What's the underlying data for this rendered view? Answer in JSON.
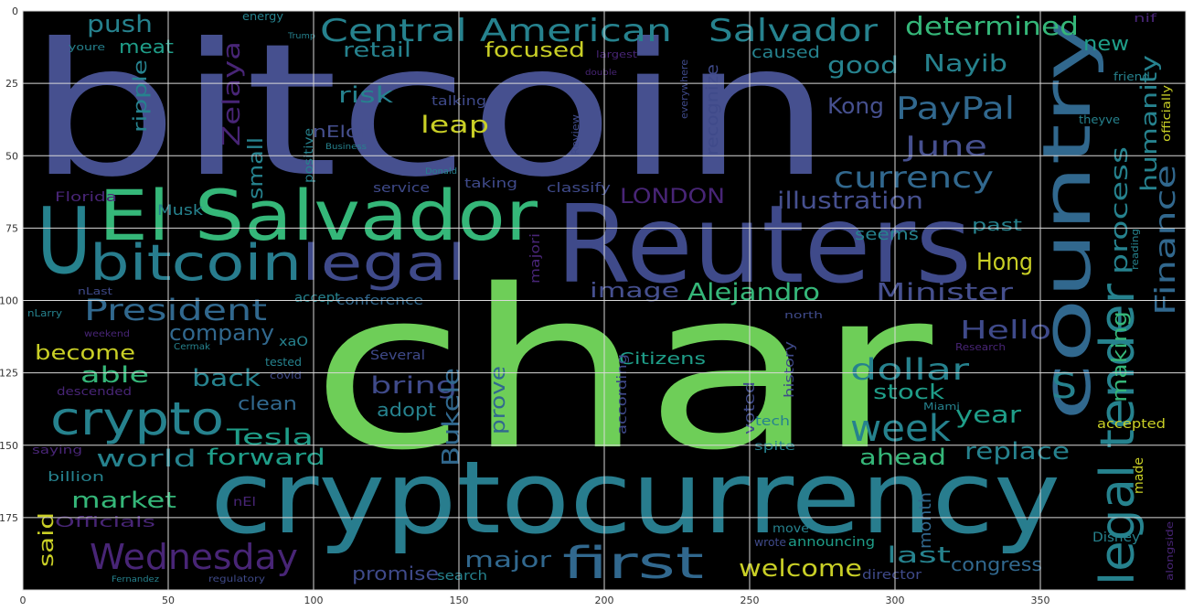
{
  "figure": {
    "background": "#000000",
    "grid_color": "#d9d9d9",
    "x_ticks": [
      "0",
      "50",
      "100",
      "150",
      "200",
      "250",
      "300",
      "350"
    ],
    "y_ticks": [
      "0",
      "25",
      "50",
      "75",
      "100",
      "125",
      "150",
      "175"
    ],
    "x_tick_values": [
      0,
      50,
      100,
      150,
      200,
      250,
      300,
      350
    ],
    "y_tick_values": [
      0,
      25,
      50,
      75,
      100,
      125,
      150,
      175
    ],
    "xlim": [
      0,
      400
    ],
    "ylim": [
      200,
      0
    ]
  },
  "palette": {
    "purple": "#482576",
    "indigo": "#3f4a8a",
    "slate": "#46508f",
    "blue": "#31688e",
    "teal_blue": "#287d8e",
    "teal": "#26828e",
    "aqua": "#1f9e89",
    "green": "#35b779",
    "lime": "#6ece58",
    "yellow": "#b5de2b",
    "gold": "#c9cf26"
  },
  "words": [
    {
      "t": "bitcoin",
      "c": "slate"
    },
    {
      "t": "char",
      "c": "lime"
    },
    {
      "t": "cryptocurrency",
      "c": "teal_blue"
    },
    {
      "t": "Reuters",
      "c": "indigo"
    },
    {
      "t": "country",
      "c": "blue"
    },
    {
      "t": "El Salvador",
      "c": "green"
    },
    {
      "t": "bitcoin",
      "c": "teal_blue"
    },
    {
      "t": "legal",
      "c": "indigo"
    },
    {
      "t": "U",
      "c": "teal"
    },
    {
      "t": "legal tender",
      "c": "teal"
    },
    {
      "t": "Central American",
      "c": "teal"
    },
    {
      "t": "Salvador",
      "c": "teal"
    },
    {
      "t": "determined",
      "c": "green"
    },
    {
      "t": "crypto",
      "c": "teal"
    },
    {
      "t": "Wednesday",
      "c": "purple"
    },
    {
      "t": "first",
      "c": "blue"
    },
    {
      "t": "week",
      "c": "teal"
    },
    {
      "t": "currency",
      "c": "blue"
    },
    {
      "t": "PayPal",
      "c": "blue"
    },
    {
      "t": "June",
      "c": "slate"
    },
    {
      "t": "Finance",
      "c": "blue"
    },
    {
      "t": "process",
      "c": "teal"
    },
    {
      "t": "humanity",
      "c": "teal"
    },
    {
      "t": "making",
      "c": "green"
    },
    {
      "t": "President",
      "c": "blue"
    },
    {
      "t": "Alejandro",
      "c": "green"
    },
    {
      "t": "Minister",
      "c": "slate"
    },
    {
      "t": "image",
      "c": "slate"
    },
    {
      "t": "LONDON",
      "c": "purple"
    },
    {
      "t": "illustration",
      "c": "slate"
    },
    {
      "t": "dollar",
      "c": "teal"
    },
    {
      "t": "Hello",
      "c": "indigo"
    },
    {
      "t": "S",
      "c": "teal"
    },
    {
      "t": "stock",
      "c": "aqua"
    },
    {
      "t": "year",
      "c": "aqua"
    },
    {
      "t": "ahead",
      "c": "green"
    },
    {
      "t": "replace",
      "c": "teal"
    },
    {
      "t": "Hong",
      "c": "gold"
    },
    {
      "t": "Kong",
      "c": "slate"
    },
    {
      "t": "Nayib",
      "c": "teal"
    },
    {
      "t": "good",
      "c": "teal"
    },
    {
      "t": "new",
      "c": "aqua"
    },
    {
      "t": "push",
      "c": "teal"
    },
    {
      "t": "meat",
      "c": "aqua"
    },
    {
      "t": "retail",
      "c": "teal"
    },
    {
      "t": "focused",
      "c": "gold"
    },
    {
      "t": "risk",
      "c": "teal"
    },
    {
      "t": "leap",
      "c": "gold"
    },
    {
      "t": "Zelaya",
      "c": "purple"
    },
    {
      "t": "small",
      "c": "teal"
    },
    {
      "t": "ripple",
      "c": "teal"
    },
    {
      "t": "company",
      "c": "blue"
    },
    {
      "t": "become",
      "c": "gold"
    },
    {
      "t": "able",
      "c": "green"
    },
    {
      "t": "back",
      "c": "teal"
    },
    {
      "t": "Tesla",
      "c": "aqua"
    },
    {
      "t": "bring",
      "c": "indigo"
    },
    {
      "t": "prove",
      "c": "blue"
    },
    {
      "t": "Bukele",
      "c": "blue"
    },
    {
      "t": "world",
      "c": "teal"
    },
    {
      "t": "forward",
      "c": "aqua"
    },
    {
      "t": "market",
      "c": "green"
    },
    {
      "t": "said",
      "c": "gold"
    },
    {
      "t": "major",
      "c": "blue"
    },
    {
      "t": "welcome",
      "c": "gold"
    },
    {
      "t": "last",
      "c": "teal"
    },
    {
      "t": "congress",
      "c": "blue"
    },
    {
      "t": "promise",
      "c": "indigo"
    },
    {
      "t": "Citizens",
      "c": "aqua"
    },
    {
      "t": "adopt",
      "c": "teal"
    },
    {
      "t": "clean",
      "c": "blue"
    },
    {
      "t": "accept",
      "c": "teal"
    },
    {
      "t": "conference",
      "c": "blue"
    },
    {
      "t": "month",
      "c": "blue"
    },
    {
      "t": "recognize",
      "c": "indigo"
    },
    {
      "t": "caused",
      "c": "teal"
    },
    {
      "t": "nElon",
      "c": "slate"
    },
    {
      "t": "Musk",
      "c": "teal"
    },
    {
      "t": "Florida",
      "c": "purple"
    },
    {
      "t": "service",
      "c": "indigo"
    },
    {
      "t": "taking",
      "c": "indigo"
    },
    {
      "t": "classify",
      "c": "indigo"
    },
    {
      "t": "positive",
      "c": "teal"
    },
    {
      "t": "talking",
      "c": "indigo"
    },
    {
      "t": "seems",
      "c": "teal"
    },
    {
      "t": "past",
      "c": "teal"
    },
    {
      "t": "voted",
      "c": "indigo"
    },
    {
      "t": "history",
      "c": "indigo"
    },
    {
      "t": "tech",
      "c": "teal"
    },
    {
      "t": "accepted",
      "c": "gold"
    },
    {
      "t": "announcing",
      "c": "aqua"
    },
    {
      "t": "director",
      "c": "indigo"
    },
    {
      "t": "search",
      "c": "teal"
    },
    {
      "t": "Disney",
      "c": "teal"
    },
    {
      "t": "billion",
      "c": "teal"
    },
    {
      "t": "Officials",
      "c": "purple"
    },
    {
      "t": "Several",
      "c": "indigo"
    },
    {
      "t": "according",
      "c": "indigo"
    },
    {
      "t": "majori",
      "c": "purple"
    },
    {
      "t": "xaO",
      "c": "teal"
    },
    {
      "t": "made",
      "c": "gold"
    },
    {
      "t": "move",
      "c": "teal"
    },
    {
      "t": "wrote",
      "c": "indigo"
    },
    {
      "t": "energy",
      "c": "teal"
    },
    {
      "t": "youre",
      "c": "teal"
    },
    {
      "t": "largest",
      "c": "purple"
    },
    {
      "t": "everywhere",
      "c": "indigo"
    },
    {
      "t": "friend",
      "c": "teal"
    },
    {
      "t": "officially",
      "c": "gold"
    },
    {
      "t": "theyve",
      "c": "teal"
    },
    {
      "t": "Review",
      "c": "indigo"
    },
    {
      "t": "nLast",
      "c": "indigo"
    },
    {
      "t": "nLarry",
      "c": "teal"
    },
    {
      "t": "weekend",
      "c": "purple"
    },
    {
      "t": "Cermak",
      "c": "teal"
    },
    {
      "t": "tested",
      "c": "teal"
    },
    {
      "t": "covid",
      "c": "indigo"
    },
    {
      "t": "descended",
      "c": "purple"
    },
    {
      "t": "saying",
      "c": "purple"
    },
    {
      "t": "spite",
      "c": "teal"
    },
    {
      "t": "north",
      "c": "indigo"
    },
    {
      "t": "Miami",
      "c": "teal"
    },
    {
      "t": "Research",
      "c": "purple"
    },
    {
      "t": "reading",
      "c": "teal"
    },
    {
      "t": "nEl",
      "c": "purple"
    },
    {
      "t": "alongside",
      "c": "purple"
    },
    {
      "t": "Fernandez",
      "c": "teal"
    },
    {
      "t": "regulatory",
      "c": "indigo"
    },
    {
      "t": "nif",
      "c": "purple"
    },
    {
      "t": "Trump",
      "c": "teal"
    },
    {
      "t": "double",
      "c": "purple"
    },
    {
      "t": "Donald",
      "c": "teal"
    },
    {
      "t": "Business",
      "c": "teal"
    }
  ]
}
